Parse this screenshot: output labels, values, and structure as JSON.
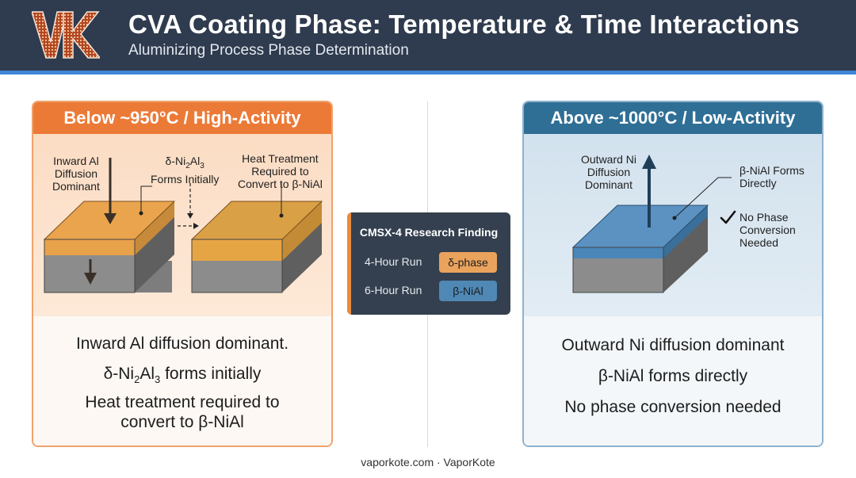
{
  "header": {
    "logo_text": "VK",
    "title": "CVA Coating Phase: Temperature & Time Interactions",
    "subtitle": "Aluminizing Process Phase Determination"
  },
  "left_panel": {
    "heading": "Below ~950°C / High-Activity",
    "labels": {
      "inward_l1": "Inward Al",
      "inward_l2": "Diffusion",
      "inward_l3": "Dominant",
      "delta_prefix": "δ-Ni",
      "delta_sub1": "2",
      "delta_mid": "Al",
      "delta_sub2": "3",
      "delta_l2": "Forms Initially",
      "heat_l1": "Heat Treatment",
      "heat_l2": "Required to",
      "heat_l3": "Convert to β-NiAl"
    },
    "body": {
      "line1": "Inward Al diffusion dominant.",
      "line2_prefix": "δ-Ni",
      "line2_sub1": "2",
      "line2_mid": "Al",
      "line2_sub2": "3",
      "line2_suffix": " forms initially",
      "line3": "Heat treatment required to",
      "line4": "convert to β-NiAl"
    }
  },
  "right_panel": {
    "heading": "Above ~1000°C / Low-Activity",
    "labels": {
      "outward_l1": "Outward Ni",
      "outward_l2": "Diffusion",
      "outward_l3": "Dominant",
      "beta_l1": "β-NiAl Forms",
      "beta_l2": "Directly",
      "noconv_l1": "No Phase",
      "noconv_l2": "Conversion",
      "noconv_l3": "Needed"
    },
    "body": {
      "line1": "Outward Ni diffusion dominant",
      "line2": "β-NiAl forms directly",
      "line3": "No phase conversion needed"
    }
  },
  "finding": {
    "title": "CMSX-4 Research Finding",
    "rows": [
      {
        "label": "4-Hour Run",
        "phase": "δ-phase"
      },
      {
        "label": "6-Hour Run",
        "phase": "β-NiAl"
      }
    ]
  },
  "footer": {
    "text": "vaporkote.com · VaporKote"
  },
  "colors": {
    "header_bg": "#2f3b4e",
    "header_stripe": "#3f86d6",
    "orange_accent": "#ec7a37",
    "blue_accent": "#2f6f96",
    "delta_phase": "#e9a35d",
    "beta_phase": "#4f88b5",
    "substrate": "#8a8a8a"
  },
  "icons": [
    "vk-logo",
    "down-arrow-icon",
    "up-arrow-icon",
    "dashed-arrow-icon",
    "checkmark-icon"
  ]
}
